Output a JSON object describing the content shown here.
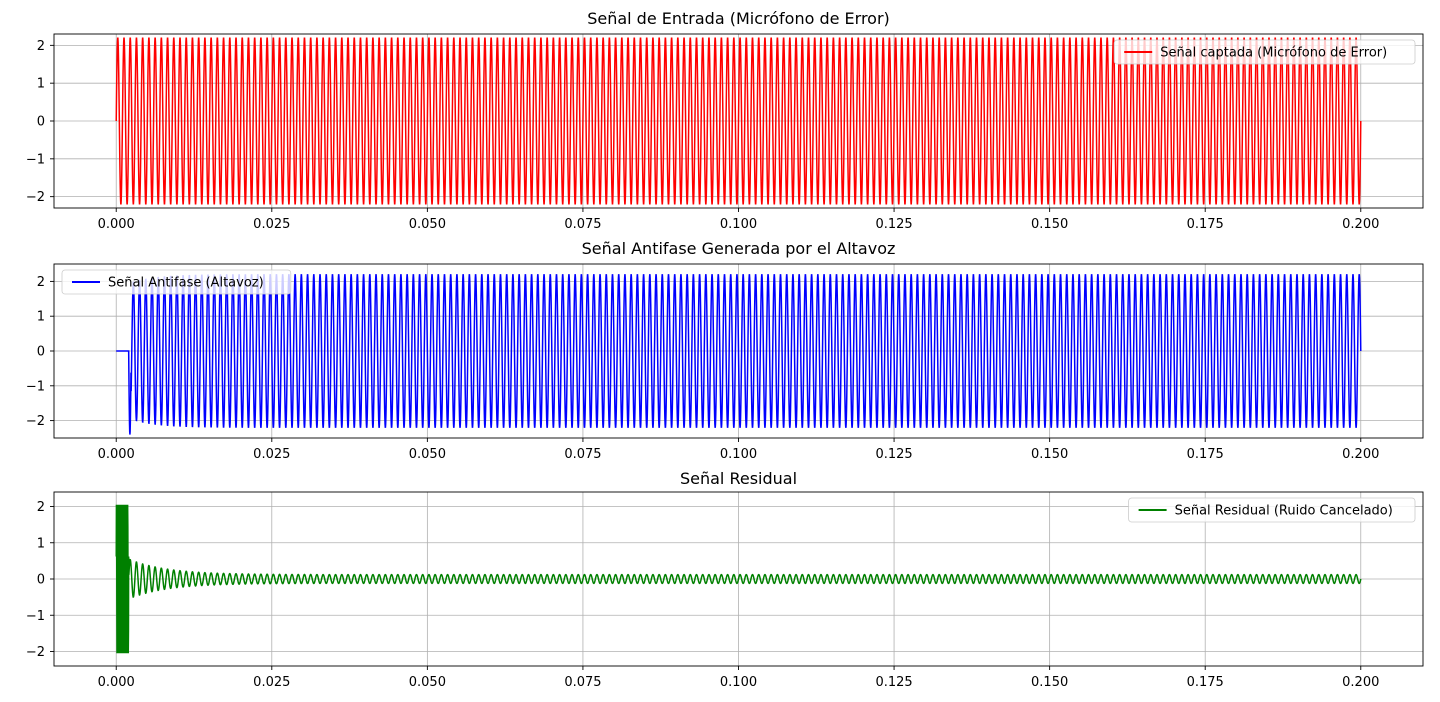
{
  "chart_data": [
    {
      "type": "line",
      "title": "Señal de Entrada (Micrófono de Error)",
      "xlabel": "",
      "ylabel": "",
      "xlim": [
        -0.01,
        0.21
      ],
      "ylim": [
        -2.3,
        2.3
      ],
      "xticks": [
        0.0,
        0.025,
        0.05,
        0.075,
        0.1,
        0.125,
        0.15,
        0.175,
        0.2
      ],
      "xtick_labels": [
        "0.000",
        "0.025",
        "0.050",
        "0.075",
        "0.100",
        "0.125",
        "0.150",
        "0.175",
        "0.200"
      ],
      "yticks": [
        2,
        1,
        0,
        -1,
        -2
      ],
      "ytick_labels": [
        "2",
        "1",
        "0",
        "−1",
        "−2"
      ],
      "grid": true,
      "legend_position": "top-right",
      "series": [
        {
          "name": "Señal captada (Micrófono de Error)",
          "color": "#ff0000",
          "x_range": [
            0.0,
            0.2
          ],
          "envelope": {
            "upper": 2.2,
            "lower": -2.2
          },
          "oscillation_cycles_visible": 200
        }
      ]
    },
    {
      "type": "line",
      "title": "Señal Antifase Generada por el Altavoz",
      "xlabel": "",
      "ylabel": "",
      "xlim": [
        -0.01,
        0.21
      ],
      "ylim": [
        -2.5,
        2.5
      ],
      "xticks": [
        0.0,
        0.025,
        0.05,
        0.075,
        0.1,
        0.125,
        0.15,
        0.175,
        0.2
      ],
      "xtick_labels": [
        "0.000",
        "0.025",
        "0.050",
        "0.075",
        "0.100",
        "0.125",
        "0.150",
        "0.175",
        "0.200"
      ],
      "yticks": [
        2,
        1,
        0,
        -1,
        -2
      ],
      "ytick_labels": [
        "2",
        "1",
        "0",
        "−1",
        "−2"
      ],
      "grid": true,
      "legend_position": "top-left",
      "series": [
        {
          "name": "Señal Antifase (Altavoz)",
          "color": "#0000ff",
          "x_range": [
            0.0,
            0.2
          ],
          "zero_until": 0.002,
          "initial_dip": -2.4,
          "envelope": {
            "upper": 2.2,
            "lower": -2.2
          },
          "oscillation_cycles_visible": 200
        }
      ]
    },
    {
      "type": "line",
      "title": "Señal Residual",
      "xlabel": "",
      "ylabel": "",
      "xlim": [
        -0.01,
        0.21
      ],
      "ylim": [
        -2.4,
        2.4
      ],
      "xticks": [
        0.0,
        0.025,
        0.05,
        0.075,
        0.1,
        0.125,
        0.15,
        0.175,
        0.2
      ],
      "xtick_labels": [
        "0.000",
        "0.025",
        "0.050",
        "0.075",
        "0.100",
        "0.125",
        "0.150",
        "0.175",
        "0.200"
      ],
      "yticks": [
        2,
        1,
        0,
        -1,
        -2
      ],
      "ytick_labels": [
        "2",
        "1",
        "0",
        "−1",
        "−2"
      ],
      "grid": true,
      "legend_position": "top-right",
      "series": [
        {
          "name": "Señal Residual (Ruido Cancelado)",
          "color": "#008000",
          "x_range": [
            0.0,
            0.2
          ],
          "burst_until": 0.002,
          "burst_amplitude": 2.1,
          "decay_start_amplitude": 0.55,
          "decay_time_constant": 0.006,
          "steady_amplitude": 0.12,
          "oscillation_cycles_visible": 200
        }
      ]
    }
  ]
}
